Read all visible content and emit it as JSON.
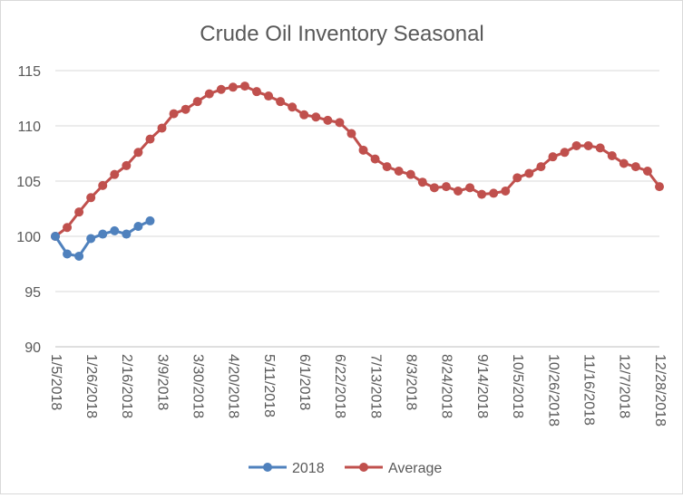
{
  "chart_data": {
    "type": "line",
    "title": "Crude Oil Inventory Seasonal",
    "xlabel": "",
    "ylabel": "",
    "ylim": [
      90,
      115
    ],
    "y_ticks": [
      90,
      95,
      100,
      105,
      110,
      115
    ],
    "grid": "horizontal",
    "legend_position": "bottom",
    "x_tick_labels": [
      "1/5/2018",
      "1/26/2018",
      "2/16/2018",
      "3/9/2018",
      "3/30/2018",
      "4/20/2018",
      "5/11/2018",
      "6/1/2018",
      "6/22/2018",
      "7/13/2018",
      "8/3/2018",
      "8/24/2018",
      "9/14/2018",
      "10/5/2018",
      "10/26/2018",
      "11/16/2018",
      "12/7/2018",
      "12/28/2018"
    ],
    "series": [
      {
        "name": "2018",
        "color": "#4f81bd",
        "values": [
          100.0,
          98.4,
          98.2,
          99.8,
          100.2,
          100.5,
          100.2,
          100.9,
          101.4
        ]
      },
      {
        "name": "Average",
        "color": "#c0504d",
        "values": [
          100.0,
          100.8,
          102.2,
          103.5,
          104.6,
          105.6,
          106.4,
          107.6,
          108.8,
          109.8,
          111.1,
          111.5,
          112.2,
          112.9,
          113.3,
          113.5,
          113.6,
          113.1,
          112.7,
          112.2,
          111.7,
          111.0,
          110.8,
          110.5,
          110.3,
          109.3,
          107.8,
          107.0,
          106.3,
          105.9,
          105.6,
          104.9,
          104.4,
          104.5,
          104.1,
          104.4,
          103.8,
          103.9,
          104.1,
          105.3,
          105.7,
          106.3,
          107.2,
          107.6,
          108.2,
          108.2,
          108.0,
          107.3,
          106.6,
          106.3,
          105.9,
          104.5
        ]
      }
    ]
  }
}
